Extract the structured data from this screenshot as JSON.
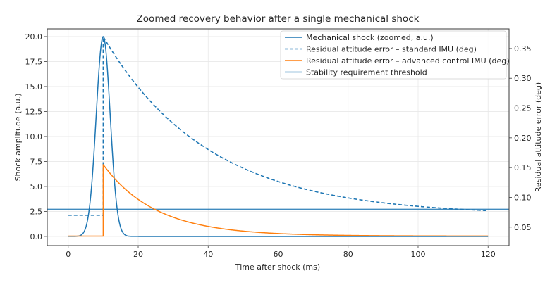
{
  "chart_data": {
    "type": "line",
    "title": "Zoomed recovery behavior after a single mechanical shock",
    "xlabel": "Time after shock (ms)",
    "ylabel_left": "Shock amplitude (a.u.)",
    "ylabel_right": "Residual attitude error (deg)",
    "xlim": [
      -6,
      126
    ],
    "ylim_left": [
      -0.92,
      20.77
    ],
    "ylim_right": [
      0.019,
      0.383
    ],
    "xticks": [
      0,
      20,
      40,
      60,
      80,
      100,
      120
    ],
    "xtick_labels": [
      "0",
      "20",
      "40",
      "60",
      "80",
      "100",
      "120"
    ],
    "yticks_left": [
      0,
      2.5,
      5,
      7.5,
      10,
      12.5,
      15,
      17.5,
      20
    ],
    "ytick_labels_left": [
      "0.0",
      "2.5",
      "5.0",
      "7.5",
      "10.0",
      "12.5",
      "15.0",
      "17.5",
      "20.0"
    ],
    "yticks_right": [
      0.05,
      0.1,
      0.15,
      0.2,
      0.25,
      0.3,
      0.35
    ],
    "ytick_labels_right": [
      "0.05",
      "0.10",
      "0.15",
      "0.20",
      "0.25",
      "0.30",
      "0.35"
    ],
    "grid": true,
    "legend_position": "top-right",
    "x_range": [
      0,
      120
    ],
    "shock_time": 10,
    "series": [
      {
        "name": "Mechanical shock (zoomed, a.u.)",
        "axis": "left",
        "style": "solid",
        "color": "#1f77b4",
        "model": "gaussian",
        "peak": 20,
        "center": 10,
        "sigma": 2
      },
      {
        "name": "Residual attitude error – standard IMU (deg)",
        "axis": "right",
        "style": "dashed",
        "color": "#1f77b4",
        "model": "step-exp-decay",
        "baseline": 0.07,
        "jump": 0.3,
        "tau": 30
      },
      {
        "name": "Residual attitude error – advanced control IMU (deg)",
        "axis": "right",
        "style": "solid",
        "color": "#ff7f0e",
        "model": "step-exp-decay",
        "baseline": 0.035,
        "jump": 0.12,
        "tau": 15
      },
      {
        "name": "Stability requirement threshold",
        "axis": "right",
        "style": "solid-thin",
        "color": "#1f77b4",
        "model": "constant",
        "value": 0.08
      }
    ],
    "sample_points": {
      "standard_imu": [
        [
          0,
          0.07
        ],
        [
          10,
          0.37
        ],
        [
          40,
          0.18
        ],
        [
          80,
          0.099
        ],
        [
          120,
          0.078
        ]
      ],
      "advanced_imu": [
        [
          0,
          0.035
        ],
        [
          10,
          0.155
        ],
        [
          25,
          0.079
        ],
        [
          40,
          0.051
        ],
        [
          120,
          0.035
        ]
      ],
      "shock": [
        [
          0,
          0.0
        ],
        [
          6,
          2.7
        ],
        [
          10,
          20.0
        ],
        [
          14,
          2.7
        ],
        [
          20,
          0.0
        ],
        [
          120,
          0.0
        ]
      ]
    }
  }
}
